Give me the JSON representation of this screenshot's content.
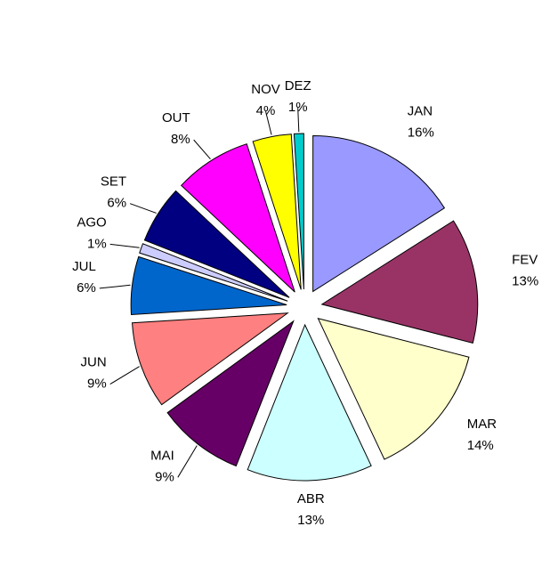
{
  "chart_data": {
    "type": "pie",
    "categories": [
      "JAN",
      "FEV",
      "MAR",
      "ABR",
      "MAI",
      "JUN",
      "JUL",
      "AGO",
      "SET",
      "OUT",
      "NOV",
      "DEZ"
    ],
    "values": [
      16,
      13,
      14,
      13,
      9,
      9,
      6,
      1,
      6,
      8,
      4,
      1
    ],
    "value_labels": [
      "16%",
      "13%",
      "14%",
      "13%",
      "9%",
      "9%",
      "6%",
      "1%",
      "6%",
      "8%",
      "4%",
      "1%"
    ],
    "colors": [
      "#9999ff",
      "#993366",
      "#ffffcc",
      "#ccffff",
      "#660066",
      "#ff8080",
      "#0066cc",
      "#ccccff",
      "#000080",
      "#ff00ff",
      "#ffff00",
      "#00cccc"
    ]
  }
}
